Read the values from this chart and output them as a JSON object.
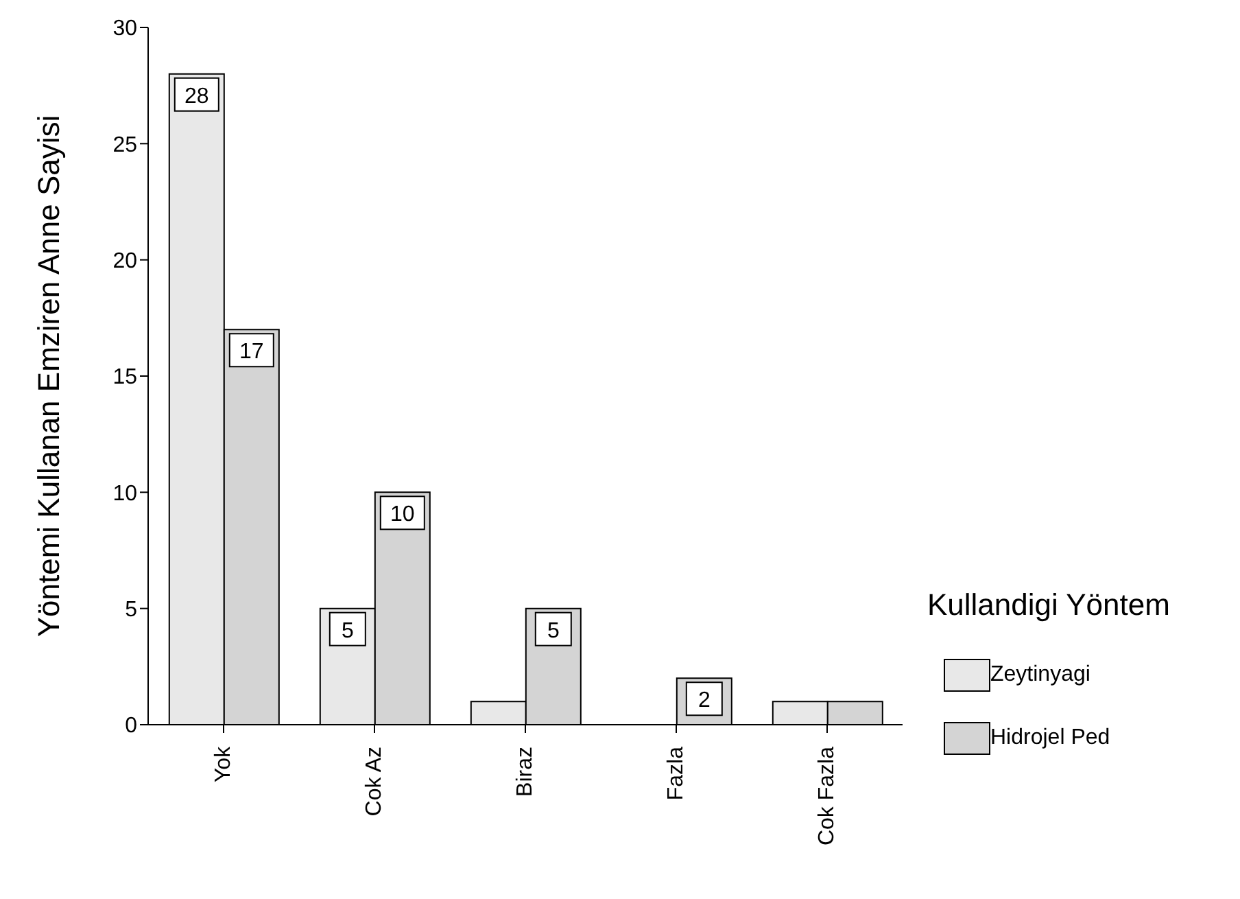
{
  "chart_data": {
    "type": "bar",
    "ylabel": "Yöntemi Kullanan Emziren Anne Sayisi",
    "legend_title": "Kullandigi Yöntem",
    "categories": [
      "Yok",
      "Cok Az",
      "Biraz",
      "Fazla",
      "Cok Fazla"
    ],
    "series": [
      {
        "name": "Zeytinyagi",
        "color": "#e8e8e8",
        "values": [
          28,
          5,
          1,
          0,
          1
        ],
        "value_labels": [
          "28",
          "5",
          null,
          null,
          null
        ]
      },
      {
        "name": "Hidrojel Ped",
        "color": "#d4d4d4",
        "values": [
          17,
          10,
          5,
          2,
          1
        ],
        "value_labels": [
          "17",
          "10",
          "5",
          "2",
          null
        ]
      }
    ],
    "ylim": [
      0,
      30
    ],
    "yticks": [
      0,
      5,
      10,
      15,
      20,
      25,
      30
    ],
    "grid": false,
    "legend": "right"
  }
}
